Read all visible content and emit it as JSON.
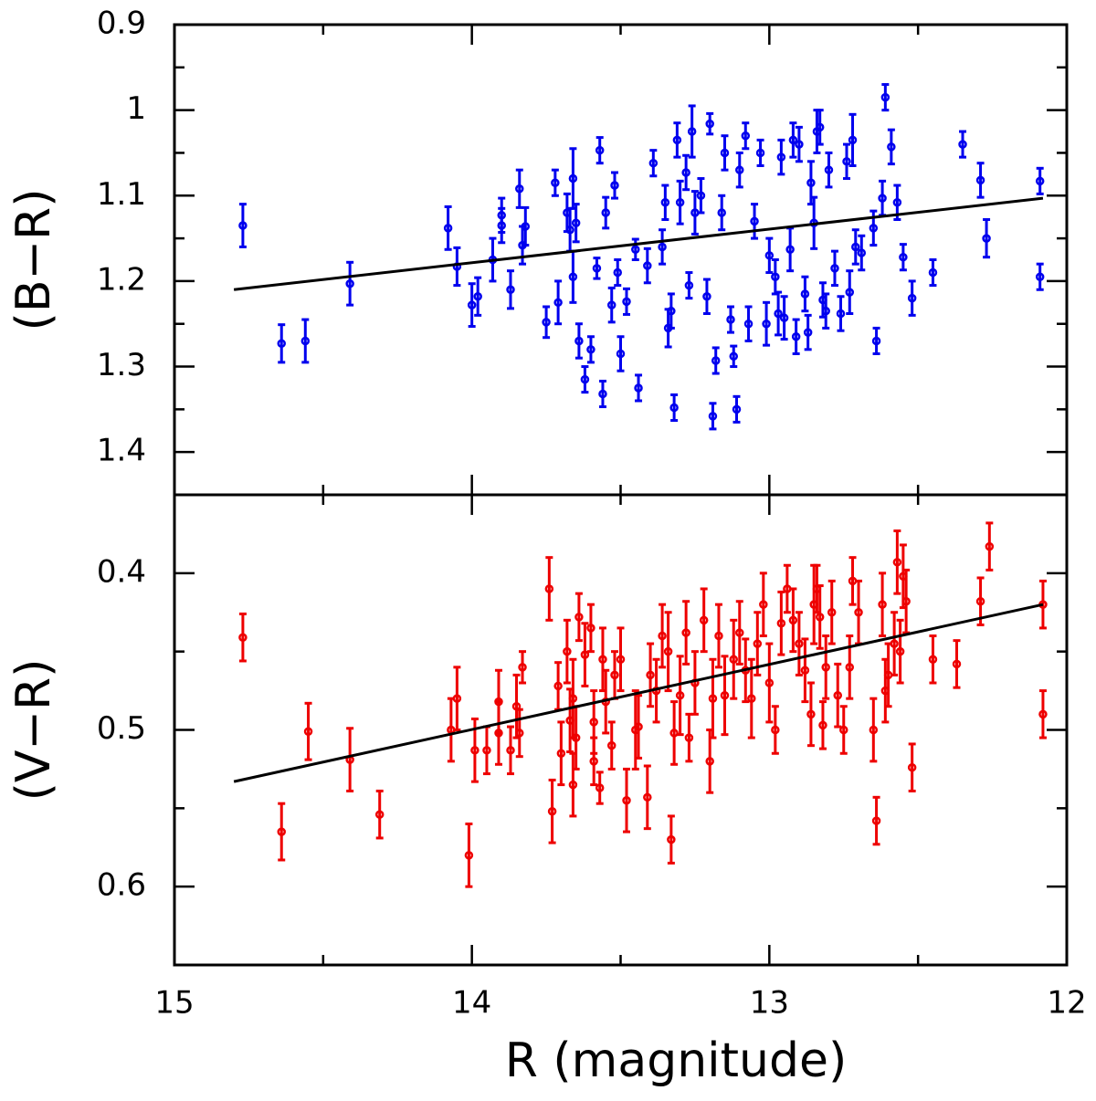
{
  "chart_data": [
    {
      "type": "scatter",
      "ylabel": "(B−R)",
      "xlim": [
        15,
        12
      ],
      "ylim": [
        1.45,
        0.9
      ],
      "xticks": [
        15,
        14,
        13,
        12
      ],
      "xminor": [
        14.5,
        13.5,
        12.5
      ],
      "yticks": [
        0.9,
        1,
        1.1,
        1.2,
        1.3,
        1.4
      ],
      "yminor": [
        0.95,
        1.05,
        1.15,
        1.25,
        1.35
      ],
      "fit": {
        "x": [
          14.8,
          12.08
        ],
        "y": [
          1.21,
          1.103
        ]
      },
      "series": [
        {
          "color": "#0000ee",
          "x": [
            14.77,
            14.64,
            14.56,
            14.41,
            14.08,
            14.05,
            14.0,
            13.98,
            13.93,
            13.9,
            13.9,
            13.87,
            13.84,
            13.83,
            13.82,
            13.75,
            13.72,
            13.71,
            13.68,
            13.67,
            13.66,
            13.66,
            13.65,
            13.64,
            13.62,
            13.6,
            13.58,
            13.57,
            13.56,
            13.55,
            13.53,
            13.52,
            13.51,
            13.5,
            13.48,
            13.45,
            13.44,
            13.41,
            13.39,
            13.36,
            13.35,
            13.34,
            13.33,
            13.32,
            13.31,
            13.3,
            13.28,
            13.27,
            13.26,
            13.25,
            13.23,
            13.21,
            13.2,
            13.19,
            13.18,
            13.16,
            13.15,
            13.13,
            13.12,
            13.11,
            13.1,
            13.08,
            13.07,
            13.05,
            13.03,
            13.01,
            13.0,
            12.98,
            12.97,
            12.96,
            12.95,
            12.93,
            12.92,
            12.91,
            12.9,
            12.88,
            12.87,
            12.86,
            12.85,
            12.84,
            12.83,
            12.82,
            12.81,
            12.8,
            12.78,
            12.76,
            12.74,
            12.73,
            12.72,
            12.71,
            12.69,
            12.65,
            12.64,
            12.62,
            12.61,
            12.59,
            12.57,
            12.55,
            12.52,
            12.45,
            12.35,
            12.29,
            12.27,
            12.09,
            12.09
          ],
          "y": [
            1.135,
            1.273,
            1.27,
            1.203,
            1.138,
            1.183,
            1.228,
            1.218,
            1.175,
            1.123,
            1.135,
            1.21,
            1.092,
            1.158,
            1.136,
            1.248,
            1.085,
            1.225,
            1.12,
            1.14,
            1.08,
            1.195,
            1.132,
            1.27,
            1.315,
            1.28,
            1.185,
            1.047,
            1.332,
            1.12,
            1.228,
            1.088,
            1.19,
            1.285,
            1.224,
            1.163,
            1.325,
            1.182,
            1.062,
            1.16,
            1.108,
            1.255,
            1.235,
            1.348,
            1.035,
            1.108,
            1.073,
            1.205,
            1.025,
            1.12,
            1.1,
            1.218,
            1.016,
            1.358,
            1.293,
            1.12,
            1.05,
            1.245,
            1.288,
            1.35,
            1.07,
            1.03,
            1.25,
            1.13,
            1.05,
            1.25,
            1.17,
            1.195,
            1.238,
            1.055,
            1.243,
            1.163,
            1.035,
            1.265,
            1.04,
            1.215,
            1.26,
            1.085,
            1.132,
            1.025,
            1.02,
            1.222,
            1.235,
            1.07,
            1.185,
            1.238,
            1.06,
            1.213,
            1.035,
            1.16,
            1.167,
            1.138,
            1.27,
            1.103,
            0.985,
            1.043,
            1.108,
            1.172,
            1.22,
            1.19,
            1.04,
            1.082,
            1.15,
            1.083,
            1.195
          ],
          "err": [
            0.025,
            0.022,
            0.025,
            0.025,
            0.025,
            0.022,
            0.025,
            0.022,
            0.025,
            0.02,
            0.02,
            0.022,
            0.022,
            0.022,
            0.022,
            0.018,
            0.015,
            0.025,
            0.022,
            0.025,
            0.035,
            0.03,
            0.022,
            0.02,
            0.015,
            0.015,
            0.012,
            0.015,
            0.015,
            0.018,
            0.02,
            0.015,
            0.015,
            0.02,
            0.015,
            0.012,
            0.015,
            0.02,
            0.015,
            0.02,
            0.02,
            0.022,
            0.02,
            0.015,
            0.02,
            0.025,
            0.02,
            0.015,
            0.03,
            0.025,
            0.02,
            0.02,
            0.012,
            0.015,
            0.015,
            0.02,
            0.02,
            0.015,
            0.012,
            0.015,
            0.02,
            0.015,
            0.02,
            0.02,
            0.015,
            0.025,
            0.02,
            0.02,
            0.025,
            0.02,
            0.025,
            0.025,
            0.02,
            0.02,
            0.02,
            0.02,
            0.02,
            0.025,
            0.03,
            0.025,
            0.02,
            0.02,
            0.02,
            0.02,
            0.02,
            0.02,
            0.02,
            0.025,
            0.03,
            0.02,
            0.02,
            0.02,
            0.015,
            0.02,
            0.015,
            0.02,
            0.02,
            0.015,
            0.02,
            0.015,
            0.015,
            0.02,
            0.022,
            0.015,
            0.015
          ]
        }
      ]
    },
    {
      "type": "scatter",
      "ylabel": "(V−R)",
      "xlabel": "R (magnitude)",
      "xlim": [
        15,
        12
      ],
      "ylim": [
        0.65,
        0.35
      ],
      "xticks": [
        15,
        14,
        13,
        12
      ],
      "xminor": [
        14.5,
        13.5,
        12.5
      ],
      "yticks": [
        0.4,
        0.5,
        0.6
      ],
      "yminor": [
        0.35,
        0.45,
        0.55,
        0.65
      ],
      "fit": {
        "x": [
          14.8,
          12.08
        ],
        "y": [
          0.533,
          0.42
        ]
      },
      "series": [
        {
          "color": "#ee0000",
          "x": [
            14.77,
            14.64,
            14.55,
            14.41,
            14.31,
            14.07,
            14.05,
            14.01,
            13.99,
            13.95,
            13.91,
            13.91,
            13.87,
            13.85,
            13.84,
            13.83,
            13.74,
            13.73,
            13.71,
            13.7,
            13.68,
            13.67,
            13.66,
            13.66,
            13.65,
            13.64,
            13.62,
            13.6,
            13.59,
            13.59,
            13.57,
            13.56,
            13.55,
            13.53,
            13.52,
            13.5,
            13.48,
            13.45,
            13.44,
            13.41,
            13.4,
            13.38,
            13.36,
            13.34,
            13.33,
            13.32,
            13.3,
            13.28,
            13.27,
            13.25,
            13.22,
            13.2,
            13.19,
            13.17,
            13.15,
            13.12,
            13.1,
            13.08,
            13.06,
            13.04,
            13.02,
            13.0,
            12.98,
            12.96,
            12.94,
            12.92,
            12.9,
            12.88,
            12.86,
            12.85,
            12.84,
            12.83,
            12.82,
            12.81,
            12.79,
            12.77,
            12.75,
            12.73,
            12.72,
            12.7,
            12.65,
            12.64,
            12.62,
            12.61,
            12.6,
            12.58,
            12.57,
            12.56,
            12.55,
            12.54,
            12.52,
            12.45,
            12.37,
            12.29,
            12.26,
            12.08,
            12.08
          ],
          "y": [
            0.441,
            0.565,
            0.501,
            0.519,
            0.554,
            0.5,
            0.48,
            0.58,
            0.513,
            0.513,
            0.502,
            0.482,
            0.513,
            0.485,
            0.502,
            0.46,
            0.41,
            0.552,
            0.472,
            0.515,
            0.45,
            0.494,
            0.535,
            0.48,
            0.505,
            0.428,
            0.452,
            0.435,
            0.495,
            0.52,
            0.537,
            0.455,
            0.482,
            0.51,
            0.465,
            0.455,
            0.545,
            0.5,
            0.498,
            0.543,
            0.465,
            0.475,
            0.44,
            0.45,
            0.57,
            0.502,
            0.478,
            0.438,
            0.505,
            0.47,
            0.43,
            0.52,
            0.48,
            0.44,
            0.478,
            0.455,
            0.438,
            0.462,
            0.48,
            0.445,
            0.42,
            0.47,
            0.5,
            0.432,
            0.41,
            0.43,
            0.445,
            0.462,
            0.49,
            0.42,
            0.41,
            0.428,
            0.497,
            0.46,
            0.425,
            0.478,
            0.5,
            0.46,
            0.405,
            0.425,
            0.5,
            0.558,
            0.42,
            0.475,
            0.465,
            0.445,
            0.393,
            0.45,
            0.402,
            0.418,
            0.524,
            0.455,
            0.458,
            0.418,
            0.383,
            0.42,
            0.49
          ],
          "err": [
            0.015,
            0.018,
            0.018,
            0.02,
            0.015,
            0.02,
            0.02,
            0.02,
            0.02,
            0.015,
            0.02,
            0.02,
            0.015,
            0.02,
            0.015,
            0.01,
            0.02,
            0.02,
            0.015,
            0.02,
            0.02,
            0.02,
            0.02,
            0.025,
            0.02,
            0.015,
            0.02,
            0.015,
            0.02,
            0.015,
            0.01,
            0.02,
            0.02,
            0.015,
            0.015,
            0.02,
            0.02,
            0.025,
            0.02,
            0.02,
            0.02,
            0.02,
            0.02,
            0.025,
            0.015,
            0.02,
            0.025,
            0.02,
            0.015,
            0.02,
            0.02,
            0.02,
            0.025,
            0.02,
            0.025,
            0.025,
            0.02,
            0.02,
            0.025,
            0.02,
            0.02,
            0.025,
            0.015,
            0.02,
            0.015,
            0.02,
            0.02,
            0.02,
            0.02,
            0.025,
            0.015,
            0.02,
            0.015,
            0.02,
            0.02,
            0.02,
            0.015,
            0.02,
            0.015,
            0.02,
            0.02,
            0.015,
            0.02,
            0.02,
            0.02,
            0.02,
            0.02,
            0.02,
            0.02,
            0.02,
            0.015,
            0.015,
            0.015,
            0.015,
            0.015,
            0.015,
            0.015
          ]
        }
      ]
    }
  ]
}
